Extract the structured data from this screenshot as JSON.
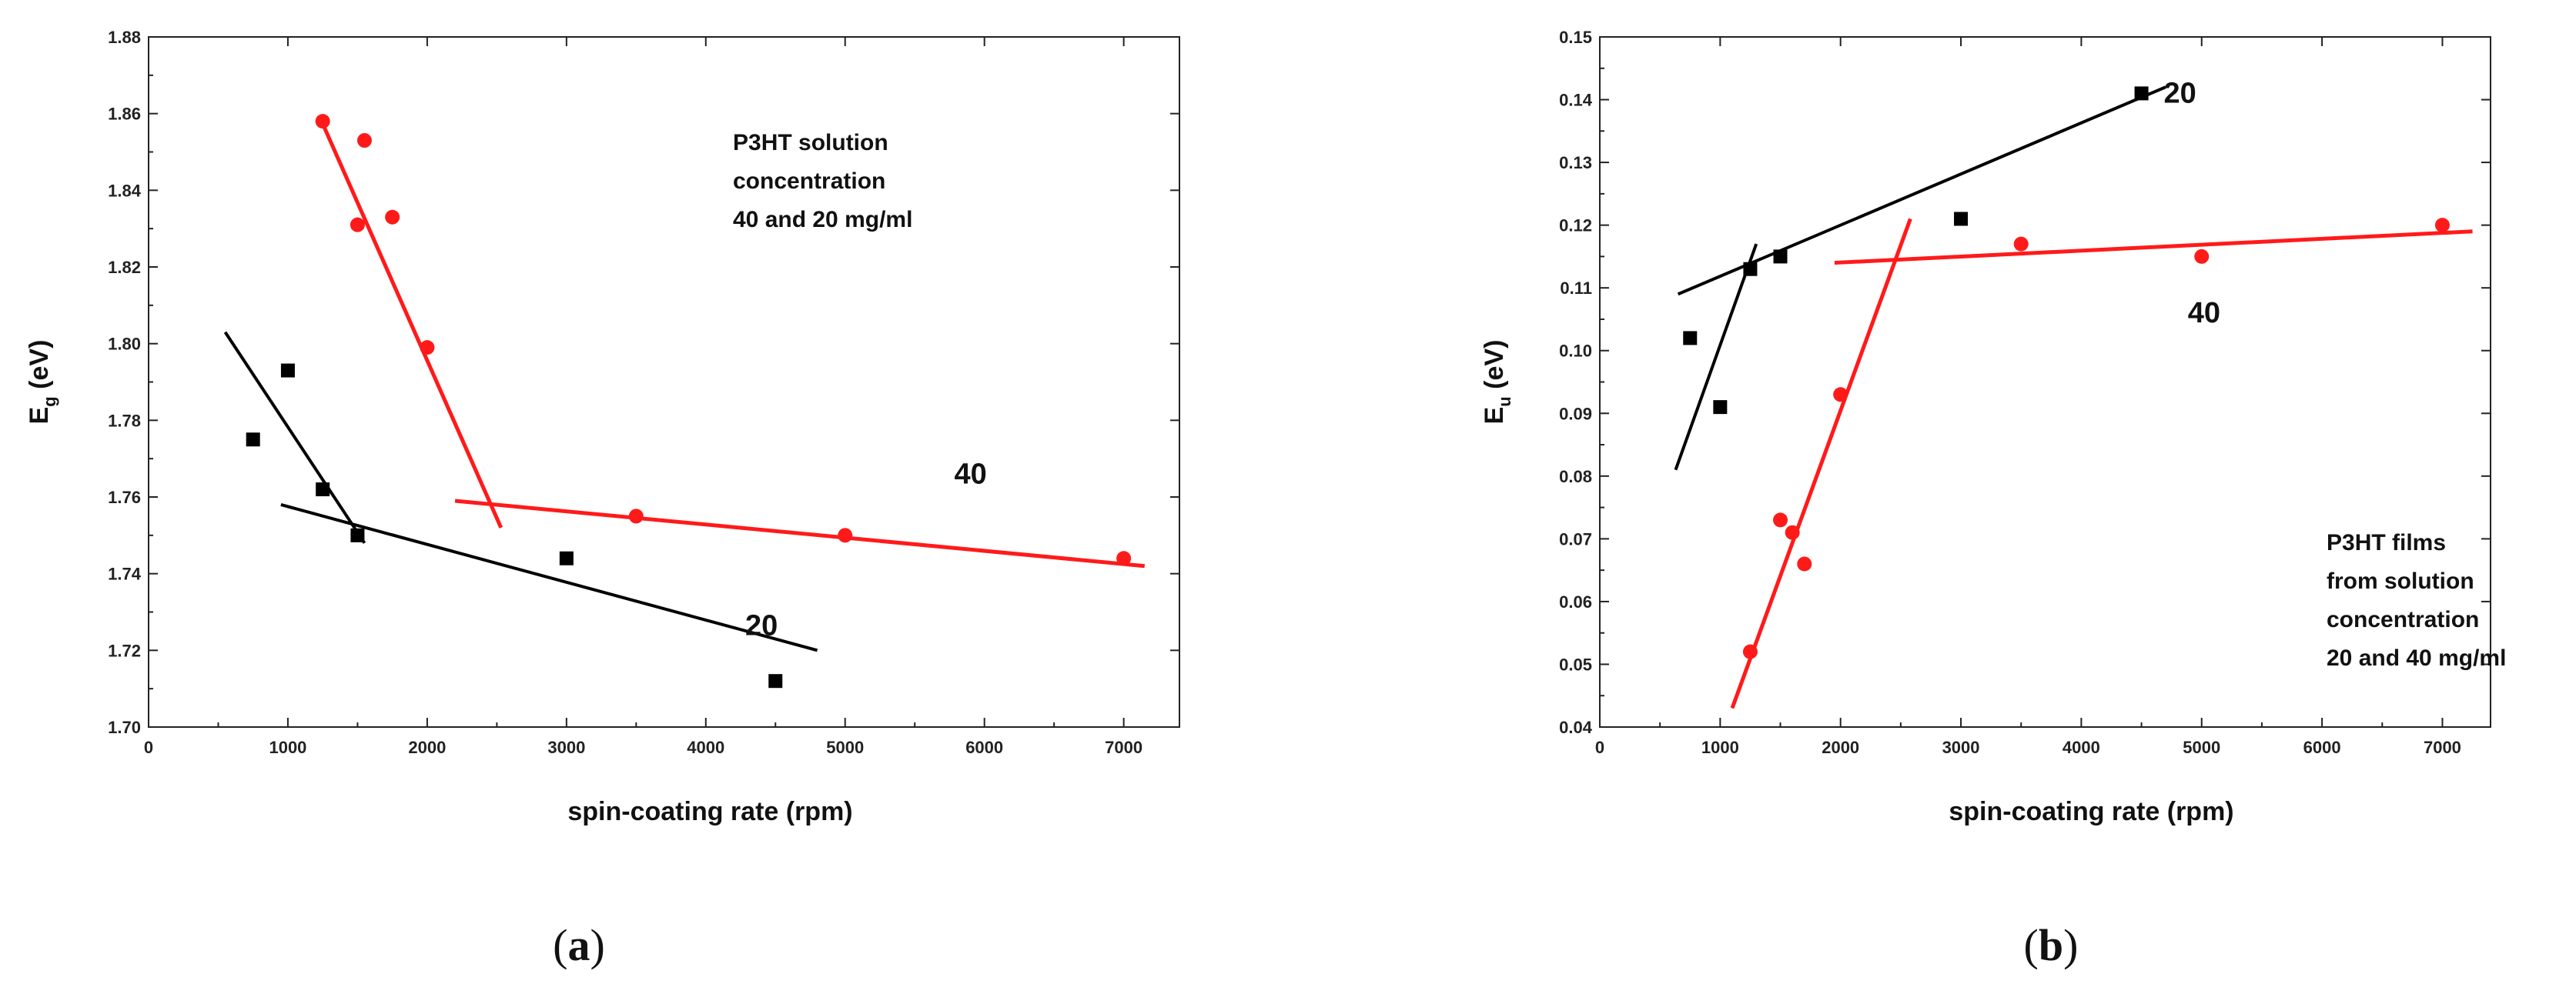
{
  "chart_data": [
    {
      "type": "scatter",
      "panel_label": {
        "open": "(",
        "letter": "a",
        "close": ")"
      },
      "xlabel": "spin-coating rate (rpm)",
      "ylabel": {
        "main": "E",
        "sub": "g",
        "rest": " (eV)"
      },
      "xlim": [
        0,
        7400
      ],
      "ylim": [
        1.7,
        1.88
      ],
      "xticks": [
        0,
        1000,
        2000,
        3000,
        4000,
        5000,
        6000,
        7000
      ],
      "yticks": [
        1.7,
        1.72,
        1.74,
        1.76,
        1.78,
        1.8,
        1.82,
        1.84,
        1.86,
        1.88
      ],
      "ytick_decimals": 2,
      "annotation": [
        "P3HT solution",
        "concentration",
        "40 and 20 mg/ml"
      ],
      "series": [
        {
          "label": "20",
          "color": "#000000",
          "marker": "square",
          "points": [
            [
              750,
              1.775
            ],
            [
              1000,
              1.793
            ],
            [
              1250,
              1.762
            ],
            [
              1500,
              1.75
            ],
            [
              3000,
              1.744
            ],
            [
              4500,
              1.712
            ]
          ],
          "fits": [
            [
              [
                550,
                1.803
              ],
              [
                1550,
                1.748
              ]
            ],
            [
              [
                950,
                1.758
              ],
              [
                4800,
                1.72
              ]
            ]
          ]
        },
        {
          "label": "40",
          "color": "#ff1a1a",
          "marker": "circle",
          "points": [
            [
              1250,
              1.858
            ],
            [
              1500,
              1.831
            ],
            [
              1550,
              1.853
            ],
            [
              1750,
              1.833
            ],
            [
              2000,
              1.799
            ],
            [
              3500,
              1.755
            ],
            [
              5000,
              1.75
            ],
            [
              7000,
              1.744
            ]
          ],
          "fits": [
            [
              [
                1230,
                1.859
              ],
              [
                2530,
                1.752
              ]
            ],
            [
              [
                2200,
                1.759
              ],
              [
                7150,
                1.742
              ]
            ]
          ]
        }
      ],
      "series_labels": [
        {
          "series": 0,
          "text": "20",
          "x": 4400,
          "y": 1.724
        },
        {
          "series": 1,
          "text": "40",
          "x": 5900,
          "y": 1.7635
        }
      ]
    },
    {
      "type": "scatter",
      "panel_label": {
        "open": "(",
        "letter": "b",
        "close": ")"
      },
      "xlabel": "spin-coating rate (rpm)",
      "ylabel": {
        "main": "E",
        "sub": "u",
        "rest": " (eV)"
      },
      "xlim": [
        0,
        7400
      ],
      "ylim": [
        0.04,
        0.15
      ],
      "xticks": [
        0,
        1000,
        2000,
        3000,
        4000,
        5000,
        6000,
        7000
      ],
      "yticks": [
        0.04,
        0.05,
        0.06,
        0.07,
        0.08,
        0.09,
        0.1,
        0.11,
        0.12,
        0.13,
        0.14,
        0.15
      ],
      "ytick_decimals": 2,
      "annotation": [
        "P3HT films",
        "from solution",
        "concentration",
        "20 and 40 mg/ml"
      ],
      "series": [
        {
          "label": "20",
          "color": "#000000",
          "marker": "square",
          "points": [
            [
              750,
              0.102
            ],
            [
              1000,
              0.091
            ],
            [
              1250,
              0.113
            ],
            [
              1500,
              0.115
            ],
            [
              3000,
              0.121
            ],
            [
              4500,
              0.141
            ]
          ],
          "fits": [
            [
              [
                630,
                0.081
              ],
              [
                1300,
                0.117
              ]
            ],
            [
              [
                650,
                0.109
              ],
              [
                4700,
                0.142
              ]
            ]
          ]
        },
        {
          "label": "40",
          "color": "#ff1a1a",
          "marker": "circle",
          "points": [
            [
              1250,
              0.052
            ],
            [
              1500,
              0.073
            ],
            [
              1600,
              0.071
            ],
            [
              1700,
              0.066
            ],
            [
              2000,
              0.093
            ],
            [
              3500,
              0.117
            ],
            [
              5000,
              0.115
            ],
            [
              7000,
              0.12
            ]
          ],
          "fits": [
            [
              [
                1100,
                0.043
              ],
              [
                2580,
                0.121
              ]
            ],
            [
              [
                1950,
                0.114
              ],
              [
                7250,
                0.119
              ]
            ]
          ]
        }
      ],
      "series_labels": [
        {
          "series": 0,
          "text": "20",
          "x": 4820,
          "y": 0.1395
        },
        {
          "series": 1,
          "text": "40",
          "x": 5020,
          "y": 0.1045
        }
      ]
    }
  ]
}
